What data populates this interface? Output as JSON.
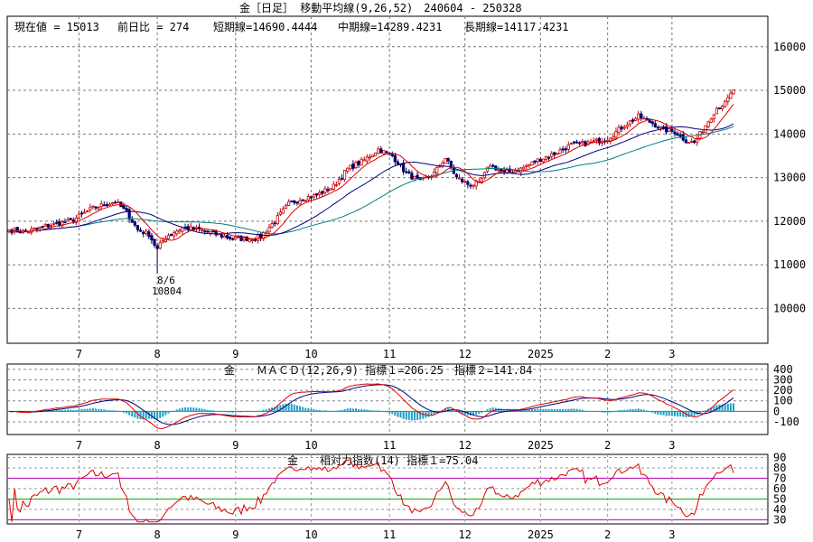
{
  "price_panel": {
    "title": "金［日足］ 移動平均線(9,26,52)　240604 - 250328",
    "readout": {
      "current": "現在値 = 15013",
      "change": "前日比 = 274",
      "short": "短期線=14690.4444",
      "mid": "中期線=14289.4231",
      "long": "長期線=14117.4231"
    },
    "annotation": {
      "date": "8/6",
      "value": "10804"
    }
  },
  "macd_panel": {
    "title": "金　　ＭＡＣＤ(12,26,9) 指標１=206.25　指標２=141.84"
  },
  "rsi_panel": {
    "title": "金　　相対力指数(14) 指標１=75.04"
  },
  "colors": {
    "candle_up": "#cc0000",
    "candle_down": "#000066",
    "ma_short": "#e00000",
    "ma_mid": "#000080",
    "ma_long": "#008080",
    "macd_hist": "#1fa0c8",
    "zero_line": "#00b000",
    "rsi_line": "#e00000",
    "rsi_70": "#b000b0",
    "rsi_50": "#00b000"
  },
  "chart_data": [
    {
      "type": "candlestick",
      "x_labels": [
        "7",
        "8",
        "9",
        "10",
        "11",
        "12",
        "2025",
        "2",
        "3"
      ],
      "y_ticks": [
        10000,
        11000,
        12000,
        13000,
        14000,
        15000,
        16000
      ],
      "ylim": [
        9200,
        16700
      ],
      "close_points": [
        {
          "i": 0,
          "v": 11800
        },
        {
          "i": 6,
          "v": 11750
        },
        {
          "i": 14,
          "v": 11900
        },
        {
          "i": 22,
          "v": 12000
        },
        {
          "i": 30,
          "v": 12300
        },
        {
          "i": 38,
          "v": 12450
        },
        {
          "i": 42,
          "v": 12200
        },
        {
          "i": 46,
          "v": 11800
        },
        {
          "i": 50,
          "v": 11700
        },
        {
          "i": 53,
          "v": 11350
        },
        {
          "i": 56,
          "v": 11650
        },
        {
          "i": 62,
          "v": 11850
        },
        {
          "i": 68,
          "v": 11800
        },
        {
          "i": 74,
          "v": 11700
        },
        {
          "i": 80,
          "v": 11600
        },
        {
          "i": 86,
          "v": 11600
        },
        {
          "i": 90,
          "v": 11650
        },
        {
          "i": 95,
          "v": 12000
        },
        {
          "i": 100,
          "v": 12400
        },
        {
          "i": 104,
          "v": 12500
        },
        {
          "i": 110,
          "v": 12600
        },
        {
          "i": 116,
          "v": 12800
        },
        {
          "i": 121,
          "v": 13200
        },
        {
          "i": 127,
          "v": 13400
        },
        {
          "i": 132,
          "v": 13650
        },
        {
          "i": 137,
          "v": 13500
        },
        {
          "i": 142,
          "v": 13100
        },
        {
          "i": 147,
          "v": 12900
        },
        {
          "i": 152,
          "v": 13100
        },
        {
          "i": 156,
          "v": 13450
        },
        {
          "i": 160,
          "v": 13000
        },
        {
          "i": 164,
          "v": 12850
        },
        {
          "i": 168,
          "v": 12850
        },
        {
          "i": 172,
          "v": 13300
        },
        {
          "i": 177,
          "v": 13100
        },
        {
          "i": 183,
          "v": 13200
        },
        {
          "i": 189,
          "v": 13400
        },
        {
          "i": 195,
          "v": 13550
        },
        {
          "i": 201,
          "v": 13750
        },
        {
          "i": 208,
          "v": 13800
        },
        {
          "i": 214,
          "v": 13900
        },
        {
          "i": 220,
          "v": 14200
        },
        {
          "i": 225,
          "v": 14400
        },
        {
          "i": 230,
          "v": 14250
        },
        {
          "i": 234,
          "v": 14100
        },
        {
          "i": 238,
          "v": 14050
        },
        {
          "i": 242,
          "v": 13850
        },
        {
          "i": 245,
          "v": 13800
        },
        {
          "i": 249,
          "v": 14200
        },
        {
          "i": 253,
          "v": 14600
        },
        {
          "i": 256,
          "v": 14700
        },
        {
          "i": 259,
          "v": 15013
        }
      ],
      "annotation": {
        "date": "8/6",
        "value": 10804
      },
      "series": [
        {
          "name": "短期線",
          "period": 9,
          "last": 14690.4444
        },
        {
          "name": "中期線",
          "period": 26,
          "last": 14289.4231
        },
        {
          "name": "長期線",
          "period": 52,
          "last": 14117.4231
        }
      ],
      "current": 15013,
      "change": 274
    },
    {
      "type": "line",
      "name": "MACD(12,26,9)",
      "y_ticks": [
        -100,
        0,
        100,
        200,
        300,
        400
      ],
      "ylim": [
        -220,
        450
      ],
      "series": [
        {
          "name": "指標１",
          "last": 206.25
        },
        {
          "name": "指標２",
          "last": 141.84
        }
      ],
      "histogram": true
    },
    {
      "type": "line",
      "name": "相対力指数(14)",
      "y_ticks": [
        30,
        40,
        50,
        60,
        70,
        80,
        90
      ],
      "ylim": [
        26,
        93
      ],
      "reference_lines": [
        30,
        50,
        70
      ],
      "series": [
        {
          "name": "指標１",
          "last": 75.04
        }
      ]
    }
  ]
}
